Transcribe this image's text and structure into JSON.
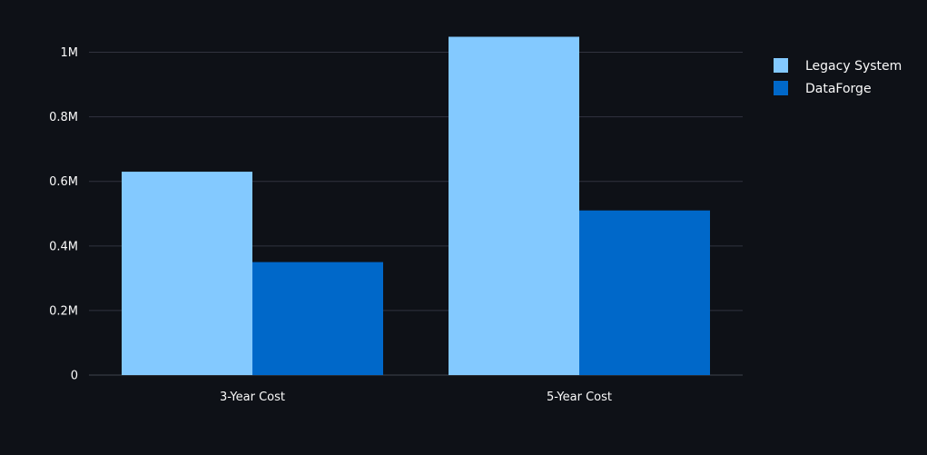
{
  "chart_data": {
    "type": "bar",
    "categories": [
      "3-Year Cost",
      "5-Year Cost"
    ],
    "series": [
      {
        "name": "Legacy System",
        "values": [
          630000,
          1048000
        ],
        "color": "#83c9ff"
      },
      {
        "name": "DataForge",
        "values": [
          350000,
          510000
        ],
        "color": "#0068c9"
      }
    ],
    "ylim": [
      0,
      1100000
    ],
    "yticks": [
      0,
      200000,
      400000,
      600000,
      800000,
      1000000
    ],
    "ytick_labels": [
      "0",
      "0.2M",
      "0.4M",
      "0.6M",
      "0.8M",
      "1M"
    ],
    "grid": true,
    "legend_position": "top-right",
    "title": "",
    "xlabel": "",
    "ylabel": ""
  }
}
